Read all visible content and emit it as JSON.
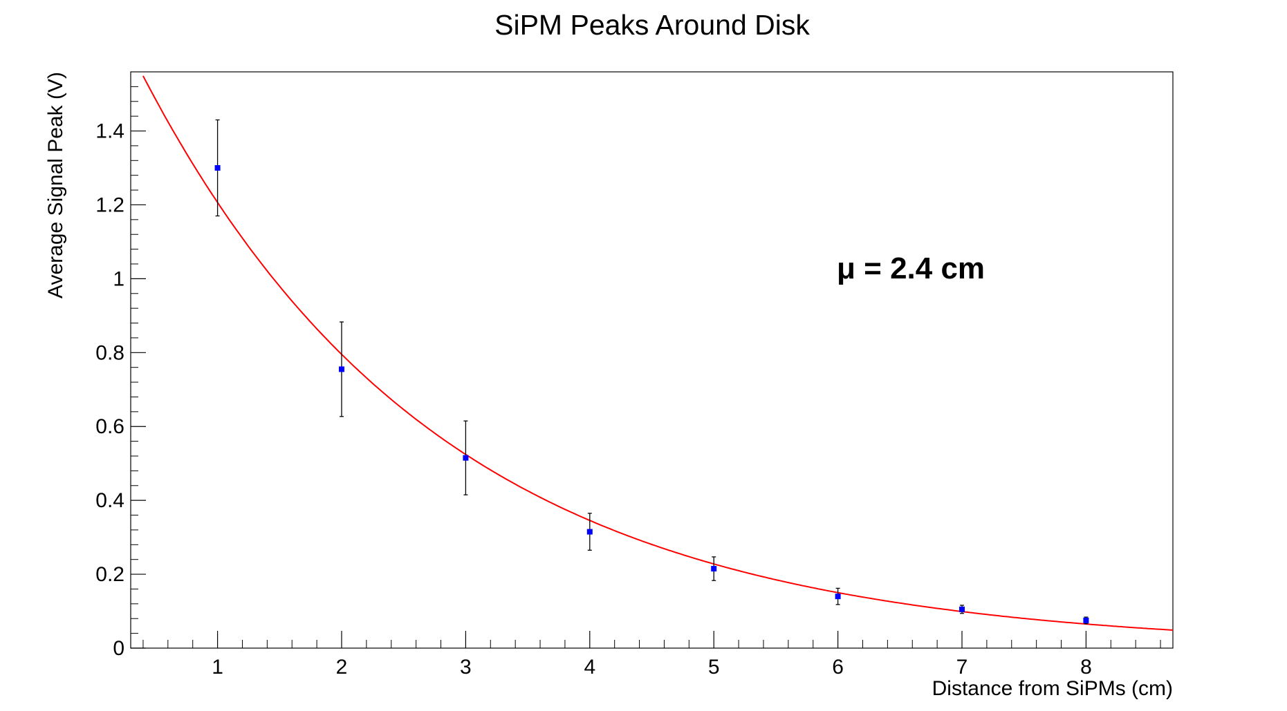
{
  "chart_data": {
    "type": "scatter",
    "title": "SiPM Peaks Around Disk",
    "xlabel": "Distance from SiPMs (cm)",
    "ylabel": "Average Signal Peak (V)",
    "xlim": [
      0.3,
      8.7
    ],
    "ylim": [
      0,
      1.56
    ],
    "x_ticks": [
      1,
      2,
      3,
      4,
      5,
      6,
      7,
      8
    ],
    "y_ticks": [
      0,
      0.2,
      0.4,
      0.6,
      0.8,
      1,
      1.2,
      1.4
    ],
    "x_tick_labels": [
      "1",
      "2",
      "3",
      "4",
      "5",
      "6",
      "7",
      "8"
    ],
    "y_tick_labels": [
      "0",
      "0.2",
      "0.4",
      "0.6",
      "0.8",
      "1",
      "1.2",
      "1.4"
    ],
    "grid": false,
    "series": [
      {
        "kind": "points_with_error_bars",
        "color": "#0000ff",
        "x": [
          1,
          2,
          3,
          4,
          5,
          6,
          7,
          8
        ],
        "y": [
          1.3,
          0.755,
          0.515,
          0.315,
          0.215,
          0.14,
          0.105,
          0.075
        ],
        "yerr": [
          0.13,
          0.128,
          0.1,
          0.05,
          0.032,
          0.022,
          0.011,
          0.009
        ]
      },
      {
        "kind": "fit_line",
        "color": "#ff0000",
        "function": "exponential",
        "amplitude": 1.83,
        "decay_length": 2.4
      }
    ],
    "annotation": "μ = 2.4 cm"
  }
}
